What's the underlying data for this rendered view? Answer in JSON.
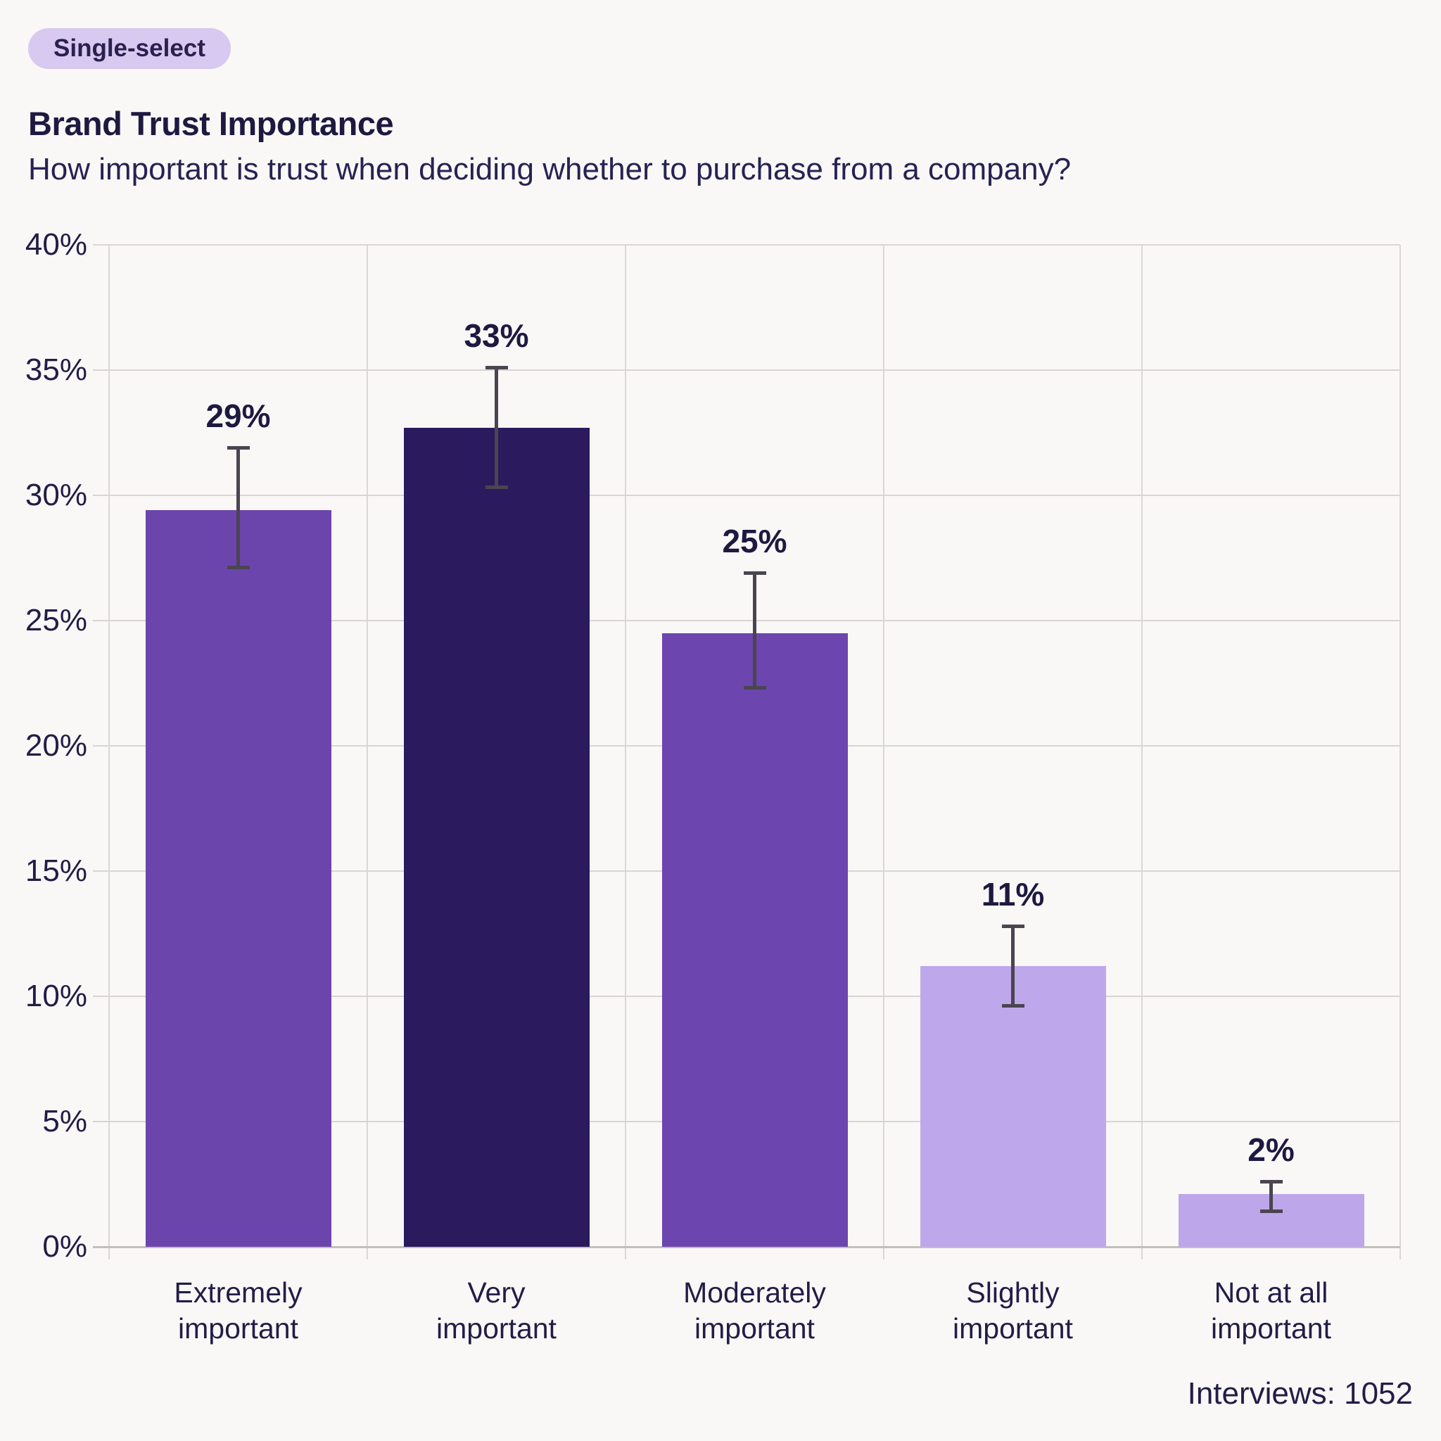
{
  "badge": {
    "label": "Single-select"
  },
  "header": {
    "title": "Brand Trust Importance",
    "subtitle": "How important is trust when deciding whether to purchase from a company?"
  },
  "colors": {
    "background": "#faf8f6",
    "badge_background": "#d8c9f0",
    "badge_text": "#2a2150",
    "text": "#221d47",
    "gridline": "#d8d5d2",
    "axis_line": "#c2bfbc",
    "error_bar": "#4a4550"
  },
  "chart_data": {
    "type": "bar",
    "title": "Brand Trust Importance",
    "subtitle": "How important is trust when deciding whether to purchase from a company?",
    "categories": [
      "Extremely important",
      "Very important",
      "Moderately important",
      "Slightly important",
      "Not at all important"
    ],
    "category_label_lines": [
      [
        "Extremely",
        "important"
      ],
      [
        "Very",
        "important"
      ],
      [
        "Moderately",
        "important"
      ],
      [
        "Slightly",
        "important"
      ],
      [
        "Not at all",
        "important"
      ]
    ],
    "values": [
      29,
      33,
      25,
      11,
      2
    ],
    "value_labels": [
      "29%",
      "33%",
      "25%",
      "11%",
      "2%"
    ],
    "bar_heights_pct": [
      29.4,
      32.7,
      24.5,
      11.2,
      2.1
    ],
    "error_low_pct": [
      27.1,
      30.3,
      22.3,
      9.6,
      1.4
    ],
    "error_high_pct": [
      31.9,
      35.1,
      26.9,
      12.8,
      2.6
    ],
    "bar_colors": [
      "#6b45ac",
      "#2b1a5e",
      "#6d45ae",
      "#bfa7eb",
      "#bda6ea"
    ],
    "xlabel": "",
    "ylabel": "",
    "ylim": [
      0,
      40
    ],
    "ytick_step": 5,
    "ytick_labels": [
      "0%",
      "5%",
      "10%",
      "15%",
      "20%",
      "25%",
      "30%",
      "35%",
      "40%"
    ],
    "grid": true,
    "legend": false,
    "sample_note": "Interviews: 1052"
  }
}
